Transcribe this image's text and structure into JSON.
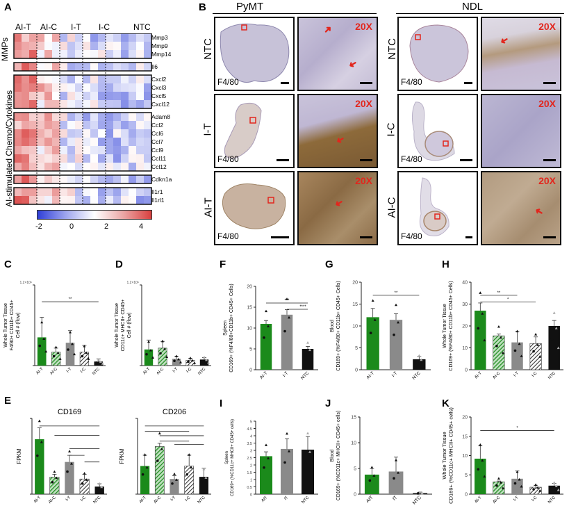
{
  "panel_letters": {
    "A": "A",
    "B": "B",
    "C": "C",
    "D": "D",
    "E": "E",
    "F": "F",
    "G": "G",
    "H": "H",
    "I": "I",
    "J": "J",
    "K": "K"
  },
  "heatmap": {
    "columns": [
      "AI-T",
      "AI-C",
      "I-T",
      "I-C",
      "NTC"
    ],
    "side_label_mmps": "MMPs",
    "side_label_chemo": "AI-stimulated Chemo/Cytokines",
    "genes": [
      "Mmp3",
      "Mmp9",
      "Mmp14",
      "Il6",
      "Cxcl2",
      "Cxcl3",
      "Cxcl5",
      "Cxcl12",
      "Adam8",
      "Ccl2",
      "Ccl6",
      "Ccl7",
      "Ccl9",
      "Ccl11",
      "Ccl12",
      "Cdkn1a",
      "Il1r1",
      "Il1rl1"
    ],
    "scale_ticks": [
      "-2",
      "0",
      "2",
      "4"
    ],
    "colors": {
      "low": "#2f3fd8",
      "mid": "#ffffff",
      "high": "#d9403f"
    }
  },
  "histology": {
    "group_pymt": "PyMT",
    "group_ndl": "NDL",
    "row_labels_pymt": [
      "NTC",
      "I-T",
      "AI-T"
    ],
    "row_labels_ndl": [
      "NTC",
      "I-C",
      "AI-C"
    ],
    "stain": "F4/80",
    "magnification": "20X"
  },
  "chart_data": [
    {
      "id": "C",
      "type": "bar",
      "title": "",
      "ylabel": "Whole Tumor Tissue F4/80+ CD11b+ CD45+ Cell # (flow)",
      "ytop_label": "1.2×10⁶",
      "categories": [
        "AI-T",
        "AI-C",
        "I-T",
        "I-C",
        "NTC"
      ],
      "values": [
        0.42,
        0.2,
        0.34,
        0.2,
        0.06
      ],
      "errors": [
        0.3,
        0.06,
        0.18,
        0.1,
        0.04
      ],
      "ylim": [
        0,
        1.2
      ],
      "significance": [
        "**"
      ]
    },
    {
      "id": "D",
      "type": "bar",
      "title": "",
      "ylabel": "Whole Tumor Tissue CD11c+ MHCII+ CD45+ Cell # (flow)",
      "ytop_label": "1.2×10⁶",
      "categories": [
        "AI-T",
        "AI-C",
        "I-T",
        "I-C",
        "NTC"
      ],
      "values": [
        0.24,
        0.26,
        0.1,
        0.08,
        0.09
      ],
      "errors": [
        0.14,
        0.1,
        0.04,
        0.03,
        0.03
      ],
      "ylim": [
        0,
        1.2
      ],
      "significance": []
    },
    {
      "id": "F",
      "type": "bar",
      "title": "",
      "ylabel": "Spleen CD169+ (%F4/80+CD11b+ CD45+ Cells)",
      "categories": [
        "AI-T",
        "I-T",
        "NTC"
      ],
      "values": [
        11,
        13.2,
        5
      ],
      "errors": [
        0.8,
        1.2,
        0.6
      ],
      "ylim": [
        0,
        20
      ],
      "yticks": [
        "0",
        "5",
        "10",
        "15",
        "20"
      ],
      "significance": [
        "***",
        "****"
      ]
    },
    {
      "id": "G",
      "type": "bar",
      "title": "",
      "ylabel": "Blood CD169+ (%F4/80+ CD11b+ CD45+ Cells)",
      "categories": [
        "AI-T",
        "I-T",
        "NTC"
      ],
      "values": [
        12,
        11.4,
        2.4
      ],
      "errors": [
        2,
        1.4,
        0.6
      ],
      "ylim": [
        0,
        20
      ],
      "yticks": [
        "0",
        "5",
        "10",
        "15",
        "20"
      ],
      "significance": [
        "**"
      ]
    },
    {
      "id": "H",
      "type": "bar",
      "title": "",
      "ylabel": "Whole Tumor Tissue CD169+ (%F4/80+ CD11b+ CD45+ Cells)",
      "categories": [
        "AI-T",
        "AI-C",
        "I-T",
        "I-C",
        "NTC"
      ],
      "values": [
        27,
        15.5,
        12.5,
        12,
        20
      ],
      "errors": [
        3.5,
        0.8,
        5,
        3,
        2.5
      ],
      "ylim": [
        0,
        40
      ],
      "yticks": [
        "0",
        "10",
        "20",
        "30",
        "40"
      ],
      "significance": [
        "**",
        "*"
      ]
    },
    {
      "id": "E1",
      "type": "bar",
      "title": "CD169",
      "ylabel": "FPKM",
      "categories": [
        "AI-T",
        "AI-C",
        "I-T",
        "I-C",
        "NTC"
      ],
      "values": [
        5.8,
        1.8,
        3.4,
        1.6,
        0.8
      ],
      "errors": [
        1.2,
        0.3,
        0.7,
        0.5,
        0.3
      ],
      "ylim": [
        0,
        8
      ],
      "significance": []
    },
    {
      "id": "E2",
      "type": "bar",
      "title": "CD206",
      "ylabel": "FPKM",
      "categories": [
        "AI-T",
        "AI-C",
        "I-T",
        "I-C",
        "NTC"
      ],
      "values": [
        2.6,
        4.4,
        1.4,
        2.6,
        1.6
      ],
      "errors": [
        1,
        0.3,
        0.3,
        1,
        0.8
      ],
      "ylim": [
        0,
        7
      ],
      "significance": []
    },
    {
      "id": "I",
      "type": "bar",
      "title": "",
      "ylabel": "Spleen CD169+ (%CD11c+ MHCII+ CD45+ cells)",
      "categories": [
        "AIT",
        "IT",
        "NTC"
      ],
      "values": [
        2.6,
        3.1,
        3.05
      ],
      "errors": [
        0.3,
        0.7,
        0.9
      ],
      "ylim": [
        0,
        5
      ],
      "yticks": [
        "0",
        "0.5",
        "1",
        "1.5",
        "2",
        "2.5",
        "3",
        "3.5",
        "4",
        "4.5",
        "5"
      ],
      "significance": []
    },
    {
      "id": "J",
      "type": "bar",
      "title": "",
      "ylabel": "Blood CD169+ (%CD11c+ MHCII+ CD45+ cells)",
      "categories": [
        "AIT",
        "IT",
        "NTC"
      ],
      "values": [
        3.8,
        4.4,
        0.2
      ],
      "errors": [
        1.2,
        2.8,
        0.2
      ],
      "ylim": [
        0,
        15
      ],
      "yticks": [
        "0",
        "5",
        "10",
        "15"
      ],
      "significance": []
    },
    {
      "id": "K",
      "type": "bar",
      "title": "",
      "ylabel": "Whole Tumor Tissue CD169+ (%CD11c+ MHCII+ CD45+ cells)",
      "categories": [
        "AI-T",
        "AI-C",
        "I-T",
        "I-C",
        "NTC"
      ],
      "values": [
        9.2,
        3.2,
        4,
        1.8,
        2.2
      ],
      "errors": [
        3.3,
        0.2,
        2,
        0.5,
        0.6
      ],
      "ylim": [
        0,
        20
      ],
      "yticks": [
        "0",
        "5",
        "10",
        "15",
        "20"
      ],
      "significance": [
        "*"
      ]
    }
  ],
  "bar_colors": {
    "AI": "#1b8a1b",
    "I": "#8a8a8a",
    "NTC": "#111111"
  }
}
